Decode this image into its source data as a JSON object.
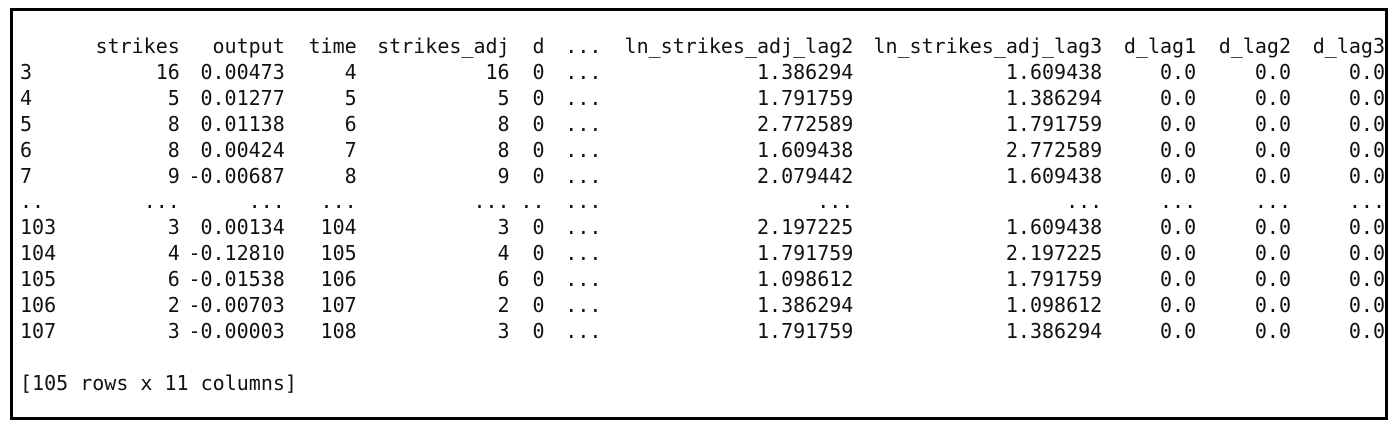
{
  "dataframe": {
    "columns": [
      "",
      "strikes",
      "output",
      "time",
      "strikes_adj",
      "d",
      "...",
      "ln_strikes_adj_lag2",
      "ln_strikes_adj_lag3",
      "d_lag1",
      "d_lag2",
      "d_lag3"
    ],
    "rows": [
      [
        "3",
        "16",
        "0.00473",
        "4",
        "16",
        "0",
        "...",
        "1.386294",
        "1.609438",
        "0.0",
        "0.0",
        "0.0"
      ],
      [
        "4",
        "5",
        "0.01277",
        "5",
        "5",
        "0",
        "...",
        "1.791759",
        "1.386294",
        "0.0",
        "0.0",
        "0.0"
      ],
      [
        "5",
        "8",
        "0.01138",
        "6",
        "8",
        "0",
        "...",
        "2.772589",
        "1.791759",
        "0.0",
        "0.0",
        "0.0"
      ],
      [
        "6",
        "8",
        "0.00424",
        "7",
        "8",
        "0",
        "...",
        "1.609438",
        "2.772589",
        "0.0",
        "0.0",
        "0.0"
      ],
      [
        "7",
        "9",
        "-0.00687",
        "8",
        "9",
        "0",
        "...",
        "2.079442",
        "1.609438",
        "0.0",
        "0.0",
        "0.0"
      ],
      [
        "..",
        "...",
        "...",
        "...",
        "...",
        "..",
        "...",
        "...",
        "...",
        "...",
        "...",
        "..."
      ],
      [
        "103",
        "3",
        "0.00134",
        "104",
        "3",
        "0",
        "...",
        "2.197225",
        "1.609438",
        "0.0",
        "0.0",
        "0.0"
      ],
      [
        "104",
        "4",
        "-0.12810",
        "105",
        "4",
        "0",
        "...",
        "1.791759",
        "2.197225",
        "0.0",
        "0.0",
        "0.0"
      ],
      [
        "105",
        "6",
        "-0.01538",
        "106",
        "6",
        "0",
        "...",
        "1.098612",
        "1.791759",
        "0.0",
        "0.0",
        "0.0"
      ],
      [
        "106",
        "2",
        "-0.00703",
        "107",
        "2",
        "0",
        "...",
        "1.386294",
        "1.098612",
        "0.0",
        "0.0",
        "0.0"
      ],
      [
        "107",
        "3",
        "-0.00003",
        "108",
        "3",
        "0",
        "...",
        "1.791759",
        "1.386294",
        "0.0",
        "0.0",
        "0.0"
      ]
    ],
    "summary": "[105 rows x 11 columns]"
  }
}
